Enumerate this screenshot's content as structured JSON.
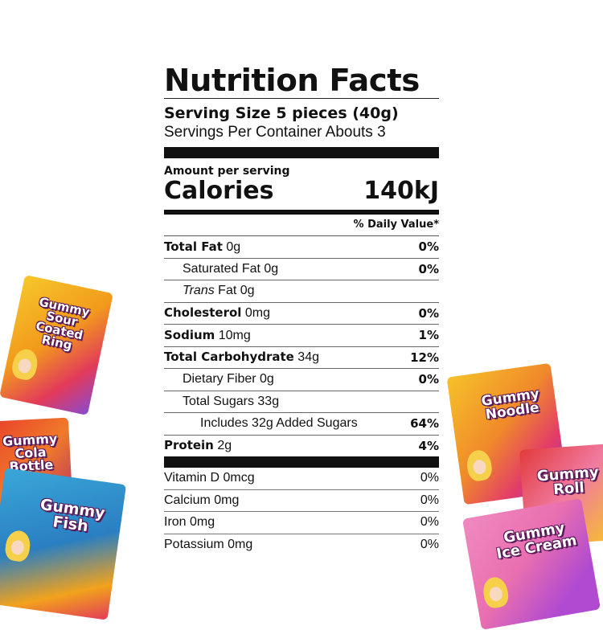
{
  "label": {
    "title": "Nutrition Facts",
    "serving_size": "Serving Size 5 pieces (40g)",
    "servings_per_container": "Servings Per Container Abouts 3",
    "amount_per_serving": "Amount per serving",
    "calories_label": "Calories",
    "calories_value": "140kJ",
    "daily_value_header": "% Daily Value*",
    "nutrients": [
      {
        "name": "Total Fat",
        "amount": "0g",
        "dv": "0%"
      },
      {
        "name": "Saturated Fat",
        "amount": "0g",
        "dv": "0%"
      },
      {
        "name": "Trans",
        "name_rest": "Fat",
        "amount": "0g",
        "dv": ""
      },
      {
        "name": "Cholesterol",
        "amount": "0mg",
        "dv": "0%"
      },
      {
        "name": "Sodium",
        "amount": "10mg",
        "dv": "1%"
      },
      {
        "name": "Total Carbohydrate",
        "amount": "34g",
        "dv": "12%"
      },
      {
        "name": "Dietary Fiber",
        "amount": "0g",
        "dv": "0%"
      },
      {
        "name": "Total Sugars",
        "amount": "33g",
        "dv": ""
      },
      {
        "name": "Includes 32g Added Sugars",
        "amount": "",
        "dv": "64%"
      },
      {
        "name": "Protein",
        "amount": "2g",
        "dv": "4%"
      }
    ],
    "vitamins": [
      {
        "text": "Vitamin D 0mcg",
        "dv": "0%"
      },
      {
        "text": "Calcium 0mg",
        "dv": "0%"
      },
      {
        "text": "Iron 0mg",
        "dv": "0%"
      },
      {
        "text": "Potassium 0mg",
        "dv": "0%"
      }
    ]
  },
  "bags": [
    {
      "title": "Gummy Sour Coated Ring",
      "color": "#f2b21c"
    },
    {
      "title": "Gummy Cola Bottle",
      "color": "#e8402a"
    },
    {
      "title": "Gummy Fish",
      "color": "#3aa7d8"
    },
    {
      "title": "Gummy Noodle",
      "color": "#f0a02a"
    },
    {
      "title": "Gummy Roll",
      "color": "#e23a3a"
    },
    {
      "title": "Gummy Ice Cream",
      "color": "#e96fb0"
    }
  ]
}
